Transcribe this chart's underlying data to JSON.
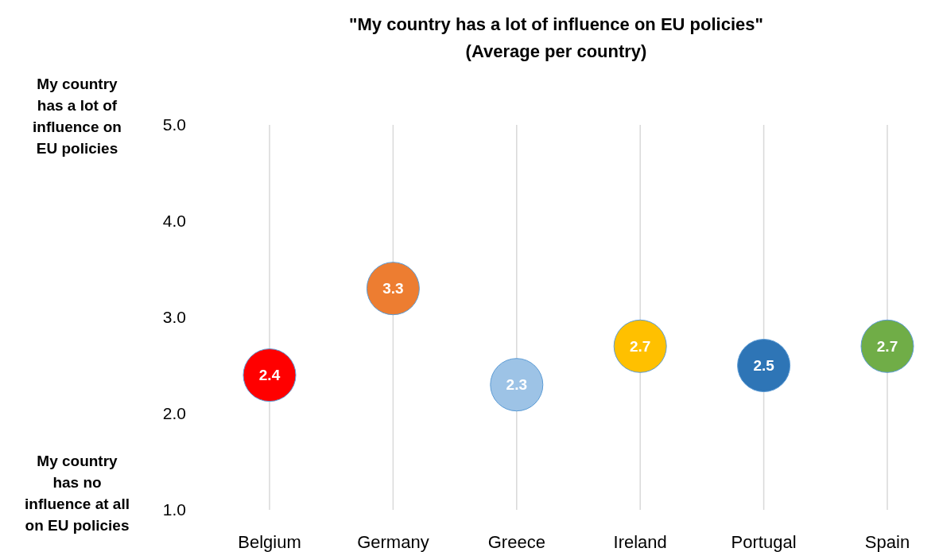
{
  "chart_data": {
    "type": "scatter",
    "title": "\"My country has a lot of influence on EU policies\"",
    "subtitle": "(Average per country)",
    "categories": [
      "Belgium",
      "Germany",
      "Greece",
      "Ireland",
      "Portugal",
      "Spain"
    ],
    "values": [
      2.4,
      3.3,
      2.3,
      2.7,
      2.5,
      2.7
    ],
    "colors": [
      "#ff0000",
      "#ed7d31",
      "#9dc3e6",
      "#ffc000",
      "#2e75b6",
      "#70ad47"
    ],
    "ylim": [
      1,
      5
    ],
    "yticks": [
      {
        "value": 1,
        "label": "1.0"
      },
      {
        "value": 2,
        "label": "2.0"
      },
      {
        "value": 3,
        "label": "3.0"
      },
      {
        "value": 4,
        "label": "4.0"
      },
      {
        "value": 5,
        "label": "5.0"
      }
    ],
    "grid": "x",
    "marker": "circle",
    "data_labels": true,
    "annotations": [
      "My country\nhas a lot of\ninfluence on\nEU policies",
      "My country\nhas no\ninfluence at all\non EU policies"
    ]
  }
}
